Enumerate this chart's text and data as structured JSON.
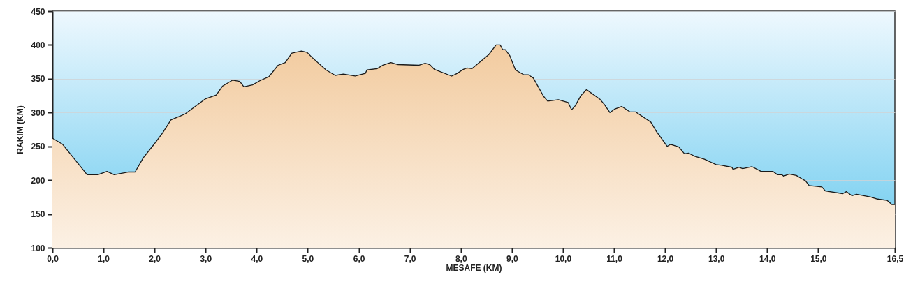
{
  "chart_data": {
    "type": "area",
    "xlabel": "MESAFE (KM)",
    "ylabel": "RAKIM (KM)",
    "xlim": [
      0,
      16.5
    ],
    "ylim": [
      100,
      450
    ],
    "xticks": [
      {
        "value": 0,
        "label": "0,0"
      },
      {
        "value": 1,
        "label": "1,0"
      },
      {
        "value": 2,
        "label": "2,0"
      },
      {
        "value": 3,
        "label": "3,0"
      },
      {
        "value": 4,
        "label": "4,0"
      },
      {
        "value": 5,
        "label": "5,0"
      },
      {
        "value": 6,
        "label": "6,0"
      },
      {
        "value": 7,
        "label": "7,0"
      },
      {
        "value": 8,
        "label": "8,0"
      },
      {
        "value": 9,
        "label": "9,0"
      },
      {
        "value": 10,
        "label": "10,0"
      },
      {
        "value": 11,
        "label": "11,0"
      },
      {
        "value": 12,
        "label": "12,0"
      },
      {
        "value": 13,
        "label": "13,0"
      },
      {
        "value": 14,
        "label": "14,0"
      },
      {
        "value": 15,
        "label": "15,0"
      },
      {
        "value": 16.5,
        "label": "16,5"
      }
    ],
    "yticks": [
      100,
      150,
      200,
      250,
      300,
      350,
      400,
      450
    ],
    "grid": "y",
    "series": [
      {
        "color": "#f2cb9f",
        "x": [
          0,
          0.2,
          0.68,
          0.89,
          1.07,
          1.21,
          1.48,
          1.62,
          1.78,
          1.98,
          2.16,
          2.32,
          2.6,
          2.99,
          3.21,
          3.33,
          3.53,
          3.67,
          3.75,
          3.92,
          4.06,
          4.24,
          4.42,
          4.56,
          4.69,
          4.88,
          4.99,
          5.08,
          5.36,
          5.54,
          5.7,
          5.93,
          6.13,
          6.16,
          6.36,
          6.47,
          6.63,
          6.77,
          7.18,
          7.3,
          7.39,
          7.48,
          7.82,
          7.93,
          8.05,
          8.12,
          8.22,
          8.55,
          8.69,
          8.77,
          8.82,
          8.87,
          8.96,
          9.07,
          9.23,
          9.32,
          9.42,
          9.62,
          9.7,
          9.91,
          10.1,
          10.17,
          10.24,
          10.35,
          10.46,
          10.72,
          10.81,
          10.92,
          11.01,
          11.15,
          11.31,
          11.42,
          11.72,
          11.83,
          12.04,
          12.11,
          12.27,
          12.38,
          12.46,
          12.59,
          12.77,
          13.0,
          13.11,
          13.31,
          13.33,
          13.45,
          13.52,
          13.7,
          13.88,
          14.11,
          14.2,
          14.29,
          14.32,
          14.43,
          14.57,
          14.68,
          14.75,
          14.82,
          15.07,
          15.14,
          15.48,
          15.55,
          15.66,
          15.75,
          16.03,
          16.16,
          16.26,
          16.35,
          16.44,
          16.5
        ],
        "values": [
          262,
          253,
          208,
          208,
          213,
          208,
          212,
          212,
          233,
          252,
          270,
          289,
          298,
          320,
          326,
          339,
          348,
          346,
          338,
          341,
          347,
          353,
          370,
          374,
          388,
          391,
          389,
          382,
          363,
          355,
          357,
          354,
          358,
          363,
          365,
          370,
          374,
          371,
          370,
          373,
          371,
          364,
          354,
          358,
          364,
          366,
          365,
          386,
          400,
          400,
          393,
          393,
          384,
          363,
          356,
          356,
          351,
          324,
          317,
          319,
          315,
          304,
          310,
          325,
          334,
          320,
          312,
          300,
          305,
          309,
          301,
          301,
          286,
          272,
          250,
          253,
          249,
          239,
          240,
          235,
          231,
          223,
          222,
          219,
          216,
          219,
          217,
          220,
          213,
          213,
          208,
          208,
          206,
          209,
          207,
          202,
          199,
          192,
          190,
          184,
          180,
          183,
          177,
          179,
          175,
          172,
          171,
          170,
          164,
          164
        ]
      }
    ]
  }
}
